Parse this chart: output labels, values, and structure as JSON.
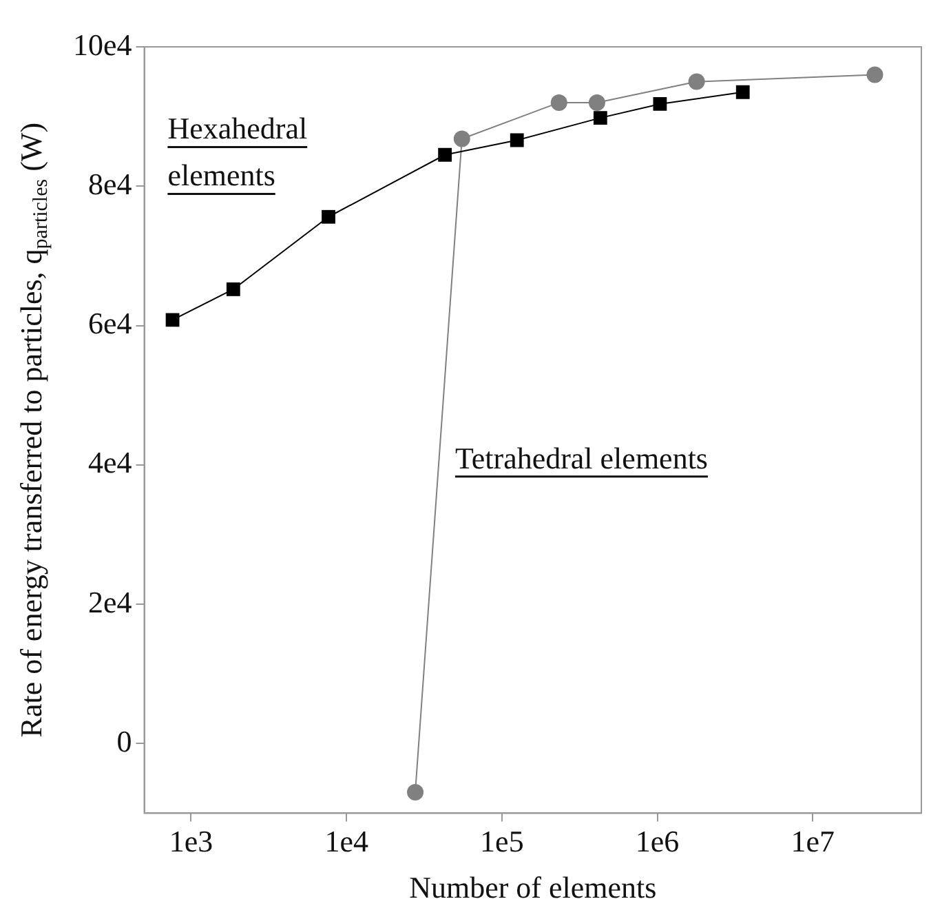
{
  "chart_data": {
    "type": "line",
    "xlabel": "Number of elements",
    "ylabel": "Rate of energy transferred to particles, q$_{particles}$ (W)",
    "log": "x",
    "grid": false,
    "legend": false,
    "xlim": [
      500,
      50000000
    ],
    "xticks": [
      {
        "value": 1000,
        "label": "1e3"
      },
      {
        "value": 10000,
        "label": "1e4"
      },
      {
        "value": 100000,
        "label": "1e5"
      },
      {
        "value": 1000000,
        "label": "1e6"
      },
      {
        "value": 10000000,
        "label": "1e7"
      }
    ],
    "ylim": [
      -10000,
      100000
    ],
    "yticks": [
      0,
      {
        "value": 20000,
        "label": "2e4"
      },
      {
        "value": 40000,
        "label": "4e4"
      },
      {
        "value": 60000,
        "label": "6e4"
      },
      {
        "value": 80000,
        "label": "8e4"
      },
      {
        "value": 100000,
        "label": "10e4"
      }
    ],
    "series": [
      {
        "name": "Hexahedral elements",
        "color": "#000000",
        "marker": "square",
        "x": [
          760,
          1870,
          7660,
          43000,
          125000,
          430000,
          1040000,
          3550000
        ],
        "values": [
          60800,
          65200,
          75600,
          84500,
          86600,
          89800,
          91800,
          93500
        ]
      },
      {
        "name": "Tetrahedral elements",
        "color": "#808080",
        "marker": "circle",
        "x": [
          27700,
          55300,
          233000,
          409000,
          1790000,
          25100000
        ],
        "values": [
          -7000,
          86800,
          92000,
          92000,
          95000,
          96000
        ]
      }
    ]
  }
}
